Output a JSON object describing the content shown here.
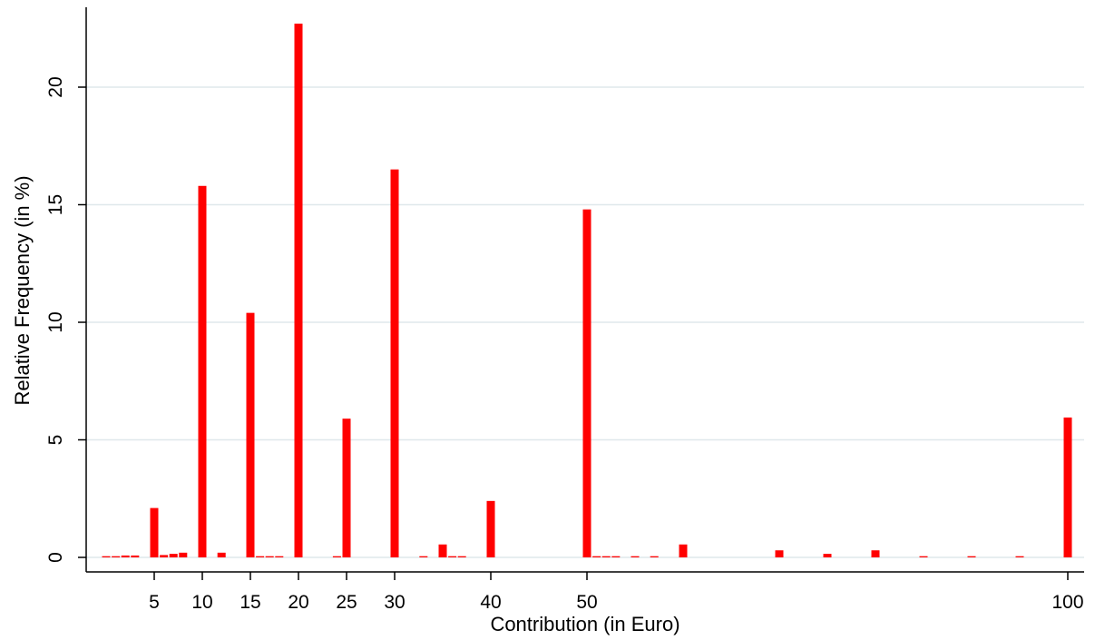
{
  "chart_data": {
    "type": "bar",
    "xlabel": "Contribution (in Euro)",
    "ylabel": "Relative Frequency (in %)",
    "ylim": [
      0,
      23.5
    ],
    "xlim": [
      -2,
      102
    ],
    "bar_color": "#ff0000",
    "grid_color": "#dfe8ec",
    "grid": true,
    "x_ticks": [
      5,
      10,
      15,
      20,
      25,
      30,
      40,
      50,
      100
    ],
    "y_ticks": [
      0,
      5,
      10,
      15,
      20
    ],
    "x": [
      0,
      1,
      2,
      3,
      5,
      6,
      7,
      8,
      10,
      12,
      15,
      16,
      17,
      18,
      20,
      24,
      25,
      30,
      33,
      35,
      36,
      37,
      40,
      50,
      51,
      52,
      53,
      55,
      57,
      60,
      70,
      75,
      80,
      85,
      90,
      95,
      100
    ],
    "values": [
      0.05,
      0.05,
      0.08,
      0.08,
      2.1,
      0.1,
      0.15,
      0.2,
      15.8,
      0.2,
      10.4,
      0.05,
      0.05,
      0.05,
      22.7,
      0.05,
      5.9,
      16.5,
      0.05,
      0.55,
      0.05,
      0.05,
      2.4,
      14.8,
      0.05,
      0.05,
      0.05,
      0.05,
      0.05,
      0.55,
      0.3,
      0.15,
      0.3,
      0.05,
      0.05,
      0.05,
      5.95
    ]
  }
}
